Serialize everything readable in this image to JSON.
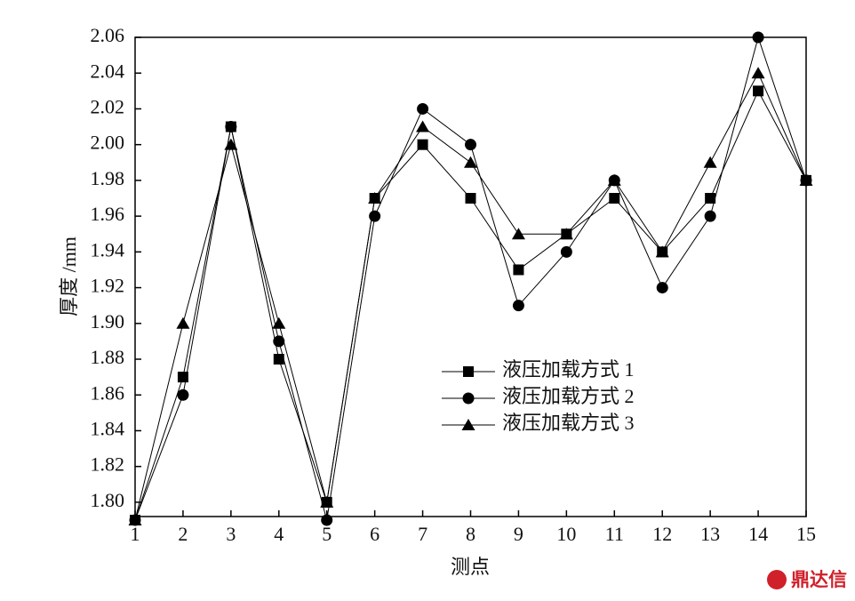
{
  "chart_data": {
    "type": "line",
    "y_label": "厚度 /mm",
    "x_label": "测点",
    "watermark": "鼎达信",
    "x": [
      1,
      2,
      3,
      4,
      5,
      6,
      7,
      8,
      9,
      10,
      11,
      12,
      13,
      14,
      15
    ],
    "series": [
      {
        "name": "液压加载方式 1",
        "color": "#000000",
        "marker": "square",
        "values": [
          1.79,
          1.87,
          2.01,
          1.88,
          1.8,
          1.97,
          2.0,
          1.97,
          1.93,
          1.95,
          1.97,
          1.94,
          1.97,
          2.03,
          1.98
        ]
      },
      {
        "name": "液压加载方式 2",
        "color": "#000000",
        "marker": "circle",
        "values": [
          1.79,
          1.86,
          2.01,
          1.89,
          1.79,
          1.96,
          2.02,
          2.0,
          1.91,
          1.94,
          1.98,
          1.92,
          1.96,
          2.06,
          1.98
        ]
      },
      {
        "name": "液压加载方式 3",
        "color": "#000000",
        "marker": "triangle",
        "values": [
          1.79,
          1.9,
          2.0,
          1.9,
          1.8,
          1.97,
          2.01,
          1.99,
          1.95,
          1.95,
          1.98,
          1.94,
          1.99,
          2.04,
          1.98
        ]
      }
    ],
    "xlim": [
      1,
      15
    ],
    "xticks": [
      1,
      2,
      3,
      4,
      5,
      6,
      7,
      8,
      9,
      10,
      11,
      12,
      13,
      14,
      15
    ],
    "ylim": [
      1.792,
      2.06
    ],
    "yticks": [
      {
        "value": 1.8,
        "label": "1.80"
      },
      {
        "value": 1.82,
        "label": "1.82"
      },
      {
        "value": 1.84,
        "label": "1.84"
      },
      {
        "value": 1.86,
        "label": "1.86"
      },
      {
        "value": 1.88,
        "label": "1.88"
      },
      {
        "value": 1.9,
        "label": "1.90"
      },
      {
        "value": 1.92,
        "label": "1.92"
      },
      {
        "value": 1.94,
        "label": "1.94"
      },
      {
        "value": 1.96,
        "label": "1.96"
      },
      {
        "value": 1.98,
        "label": "1.98"
      },
      {
        "value": 2.0,
        "label": "2.00"
      },
      {
        "value": 2.02,
        "label": "2.02"
      },
      {
        "value": 2.04,
        "label": "2.04"
      },
      {
        "value": 2.06,
        "label": "2.06"
      }
    ],
    "grid": false,
    "legend": "lower-center"
  }
}
